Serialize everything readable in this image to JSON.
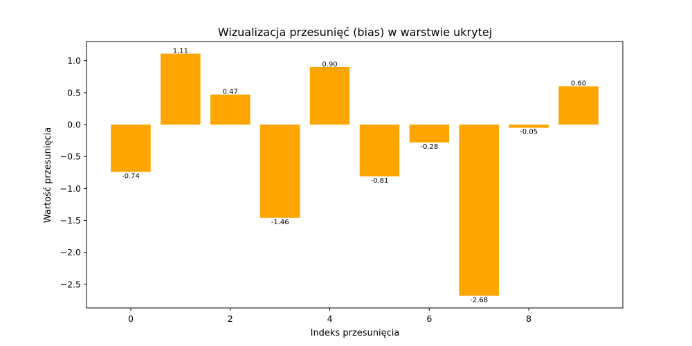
{
  "chart_data": {
    "type": "bar",
    "title": "Wizualizacja przesunięć (bias) w warstwie ukrytej",
    "xlabel": "Indeks przesunięcia",
    "ylabel": "Wartość przesunięcia",
    "categories": [
      0,
      1,
      2,
      3,
      4,
      5,
      6,
      7,
      8,
      9
    ],
    "values": [
      -0.74,
      1.11,
      0.47,
      -1.46,
      0.9,
      -0.81,
      -0.28,
      -2.68,
      -0.05,
      0.6
    ],
    "data_labels": [
      "-0.74",
      "1.11",
      "0.47",
      "-1.46",
      "0.90",
      "-0.81",
      "-0.28",
      "-2.68",
      "-0.05",
      "0.60"
    ],
    "xlim": [
      -0.89,
      9.89
    ],
    "ylim": [
      -2.87,
      1.3
    ],
    "x_ticks": [
      0,
      2,
      4,
      6,
      8
    ],
    "x_tick_labels": [
      "0",
      "2",
      "4",
      "6",
      "8"
    ],
    "y_ticks": [
      1.0,
      0.5,
      0.0,
      -0.5,
      -1.0,
      -1.5,
      -2.0,
      -2.5
    ],
    "y_tick_labels": [
      "1.0",
      "0.5",
      "0.0",
      "−0.5",
      "−1.0",
      "−1.5",
      "−2.0",
      "−2.5"
    ],
    "bar_color": "#ffa500",
    "grid": false,
    "legend": false
  }
}
